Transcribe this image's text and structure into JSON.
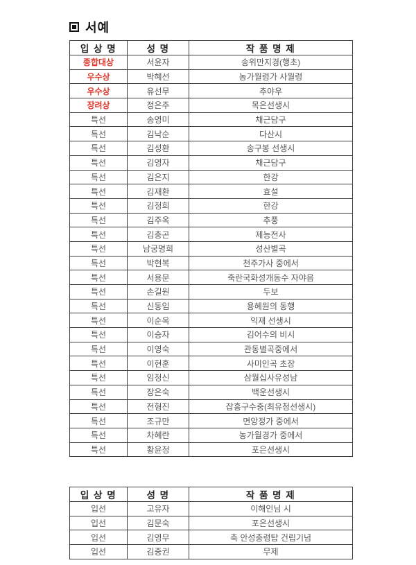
{
  "page": {
    "title": "서예"
  },
  "colors": {
    "award_highlight": "#e03a2e",
    "body_text": "#595959",
    "header_text": "#262626",
    "border": "#3c3c3c",
    "background": "#ffffff"
  },
  "tables": [
    {
      "headers": [
        "입 상 명",
        "성 명",
        "작 품 명 제"
      ],
      "rows": [
        {
          "award": "종합대상",
          "name": "서윤자",
          "work": "송위만지경(행초)",
          "red": true
        },
        {
          "award": "우수상",
          "name": "박혜선",
          "work": "농가월령가 사월령",
          "red": true
        },
        {
          "award": "우수상",
          "name": "유선무",
          "work": "추야우",
          "red": true
        },
        {
          "award": "장려상",
          "name": "정은주",
          "work": "목은선생시",
          "red": true
        },
        {
          "award": "특선",
          "name": "송영미",
          "work": "채근담구",
          "red": false
        },
        {
          "award": "특선",
          "name": "김낙순",
          "work": "다산시",
          "red": false
        },
        {
          "award": "특선",
          "name": "김성환",
          "work": "송구봉 선생시",
          "red": false
        },
        {
          "award": "특선",
          "name": "김영자",
          "work": "채근담구",
          "red": false
        },
        {
          "award": "특선",
          "name": "김은지",
          "work": "한강",
          "red": false
        },
        {
          "award": "특선",
          "name": "김재환",
          "work": "효설",
          "red": false
        },
        {
          "award": "특선",
          "name": "김정희",
          "work": "한강",
          "red": false
        },
        {
          "award": "특선",
          "name": "김주옥",
          "work": "추풍",
          "red": false
        },
        {
          "award": "특선",
          "name": "김충곤",
          "work": "제능전사",
          "red": false
        },
        {
          "award": "특선",
          "name": "남궁명희",
          "work": "성산별곡",
          "red": false
        },
        {
          "award": "특선",
          "name": "박현복",
          "work": "천주가사 중에서",
          "red": false
        },
        {
          "award": "특선",
          "name": "서용문",
          "work": "죽란국화성개동수 자야음",
          "red": false
        },
        {
          "award": "특선",
          "name": "손길원",
          "work": "두보",
          "red": false
        },
        {
          "award": "특선",
          "name": "신동임",
          "work": "용혜원의 동행",
          "red": false
        },
        {
          "award": "특선",
          "name": "이순옥",
          "work": "익재 선생시",
          "red": false
        },
        {
          "award": "특선",
          "name": "이승자",
          "work": "김어수의 비시",
          "red": false
        },
        {
          "award": "특선",
          "name": "이영숙",
          "work": "관동별곡중에서",
          "red": false
        },
        {
          "award": "특선",
          "name": "이현훈",
          "work": "사미인곡 초장",
          "red": false
        },
        {
          "award": "특선",
          "name": "임정신",
          "work": "삼월십사유성남",
          "red": false
        },
        {
          "award": "특선",
          "name": "장은숙",
          "work": "백운선생시",
          "red": false
        },
        {
          "award": "특선",
          "name": "전형진",
          "work": "잡흥구수중(최유청선생시)",
          "red": false
        },
        {
          "award": "특선",
          "name": "조규만",
          "work": "면앙정가 중에서",
          "red": false
        },
        {
          "award": "특선",
          "name": "차혜란",
          "work": "농가월경가 중에서",
          "red": false
        },
        {
          "award": "특선",
          "name": "황윤정",
          "work": "포은선생시",
          "red": false
        }
      ]
    },
    {
      "headers": [
        "입 상 명",
        "성 명",
        "작 품 명 제"
      ],
      "rows": [
        {
          "award": "입선",
          "name": "고유자",
          "work": "이해인님 시",
          "red": false
        },
        {
          "award": "입선",
          "name": "김문숙",
          "work": "포은선생시",
          "red": false
        },
        {
          "award": "입선",
          "name": "김영무",
          "work": "축 안성충령탑 건립기념",
          "red": false
        },
        {
          "award": "입선",
          "name": "김중권",
          "work": "무제",
          "red": false
        }
      ]
    }
  ]
}
